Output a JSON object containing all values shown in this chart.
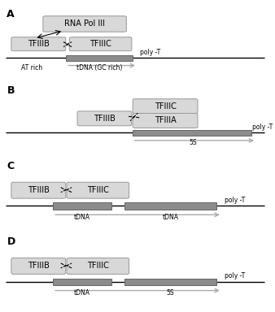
{
  "box_light": "#d8d8d8",
  "box_dark": "#8c8c8c",
  "arrow_gray": "#aaaaaa",
  "text_color": "#111111",
  "panels": [
    "A",
    "B",
    "C",
    "D"
  ],
  "figsize": [
    3.38,
    3.84
  ],
  "dpi": 100
}
